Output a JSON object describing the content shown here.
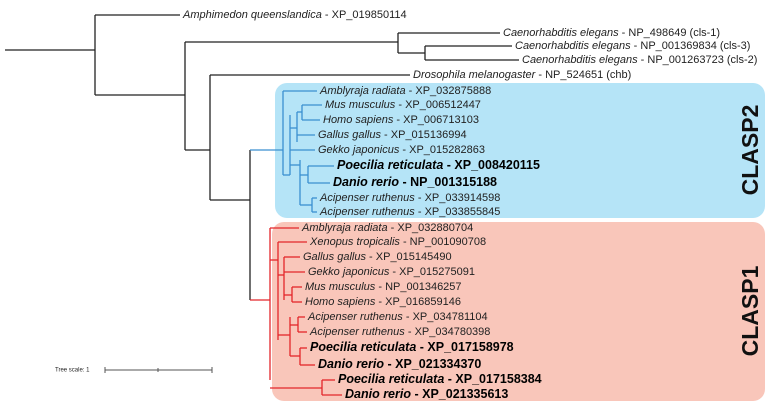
{
  "groups": [
    "CLASP2",
    "CLASP1"
  ],
  "tree_scale": "Tree scale: 1",
  "leaves": [
    {
      "species": "Amphimedon queenslandica",
      "id": "- XP_019850114"
    },
    {
      "species": "Caenorhabditis elegans",
      "id": "- NP_498649 (cls-1)"
    },
    {
      "species": "Caenorhabditis elegans",
      "id": "- NP_001369834 (cls-3)"
    },
    {
      "species": "Caenorhabditis elegans",
      "id": "- NP_001263723 (cls-2)"
    },
    {
      "species": "Drosophila melanogaster",
      "id": "- NP_524651 (chb)"
    },
    {
      "species": "Amblyraja radiata",
      "id": "- XP_032875888"
    },
    {
      "species": "Mus musculus",
      "id": "- XP_006512447"
    },
    {
      "species": "Homo sapiens",
      "id": "- XP_006713103"
    },
    {
      "species": "Gallus gallus",
      "id": "- XP_015136994"
    },
    {
      "species": "Gekko japonicus",
      "id": "- XP_015282863"
    },
    {
      "species": "Poecilia reticulata",
      "id": "- XP_008420115"
    },
    {
      "species": "Danio rerio",
      "id": "- NP_001315188"
    },
    {
      "species": "Acipenser ruthenus",
      "id": "- XP_033914598"
    },
    {
      "species": "Acipenser ruthenus",
      "id": "- XP_033855845"
    },
    {
      "species": "Amblyraja radiata",
      "id": "- XP_032880704"
    },
    {
      "species": "Xenopus tropicalis",
      "id": "- NP_001090708"
    },
    {
      "species": "Gallus gallus",
      "id": "- XP_015145490"
    },
    {
      "species": "Gekko japonicus",
      "id": "- XP_015275091"
    },
    {
      "species": "Mus musculus",
      "id": "- NP_001346257"
    },
    {
      "species": "Homo sapiens",
      "id": "- XP_016859146"
    },
    {
      "species": "Acipenser ruthenus",
      "id": "- XP_034781104"
    },
    {
      "species": "Acipenser ruthenus",
      "id": "- XP_034780398"
    },
    {
      "species": "Poecilia reticulata",
      "id": "- XP_017158978"
    },
    {
      "species": "Danio rerio",
      "id": "- XP_021334370"
    },
    {
      "species": "Poecilia reticulata",
      "id": "- XP_017158384"
    },
    {
      "species": "Danio rerio",
      "id": "- XP_021335613"
    }
  ]
}
